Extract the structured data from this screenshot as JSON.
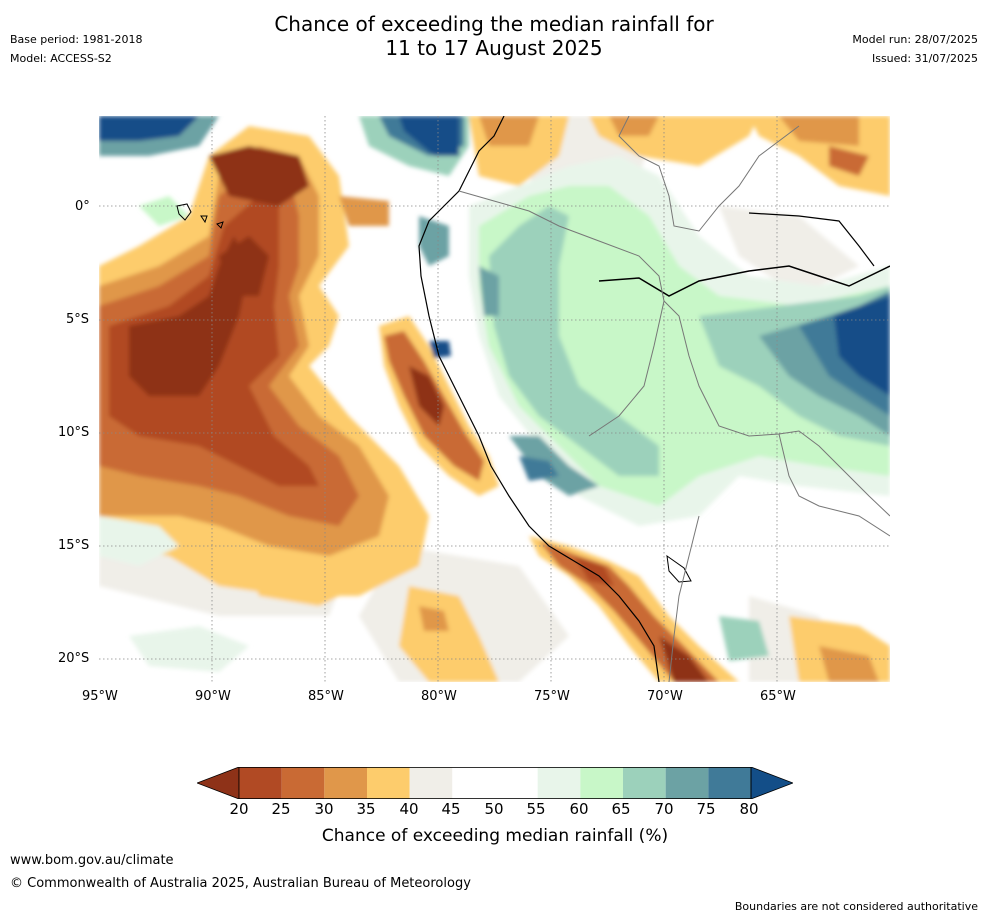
{
  "header": {
    "base_period": "Base period: 1981-2018",
    "model": "Model: ACCESS-S2",
    "title_line1": "Chance of exceeding the median rainfall for",
    "title_line2": "11 to 17 August 2025",
    "model_run": "Model run: 28/07/2025",
    "issued": "Issued: 31/07/2025"
  },
  "map": {
    "lat_labels": [
      "0°",
      "5°S",
      "10°S",
      "15°S",
      "20°S"
    ],
    "lon_labels": [
      "95°W",
      "90°W",
      "85°W",
      "80°W",
      "75°W",
      "70°W",
      "65°W"
    ]
  },
  "colorbar": {
    "title": "Chance of exceeding median rainfall (%)",
    "ticks": [
      "20",
      "25",
      "30",
      "35",
      "40",
      "45",
      "50",
      "55",
      "60",
      "65",
      "70",
      "75",
      "80"
    ],
    "colors": [
      "#8e3218",
      "#b14a24",
      "#c96a34",
      "#e0974a",
      "#fdcc6c",
      "#f0eee8",
      "#ffffff",
      "#ffffff",
      "#e8f5ea",
      "#c8f7c8",
      "#9cd1bb",
      "#6ca2a4",
      "#407a98",
      "#134e88"
    ]
  },
  "footer": {
    "url": "www.bom.gov.au/climate",
    "copyright": "© Commonwealth of Australia 2025, Australian Bureau of Meteorology",
    "disclaimer": "Boundaries are not considered authoritative"
  }
}
